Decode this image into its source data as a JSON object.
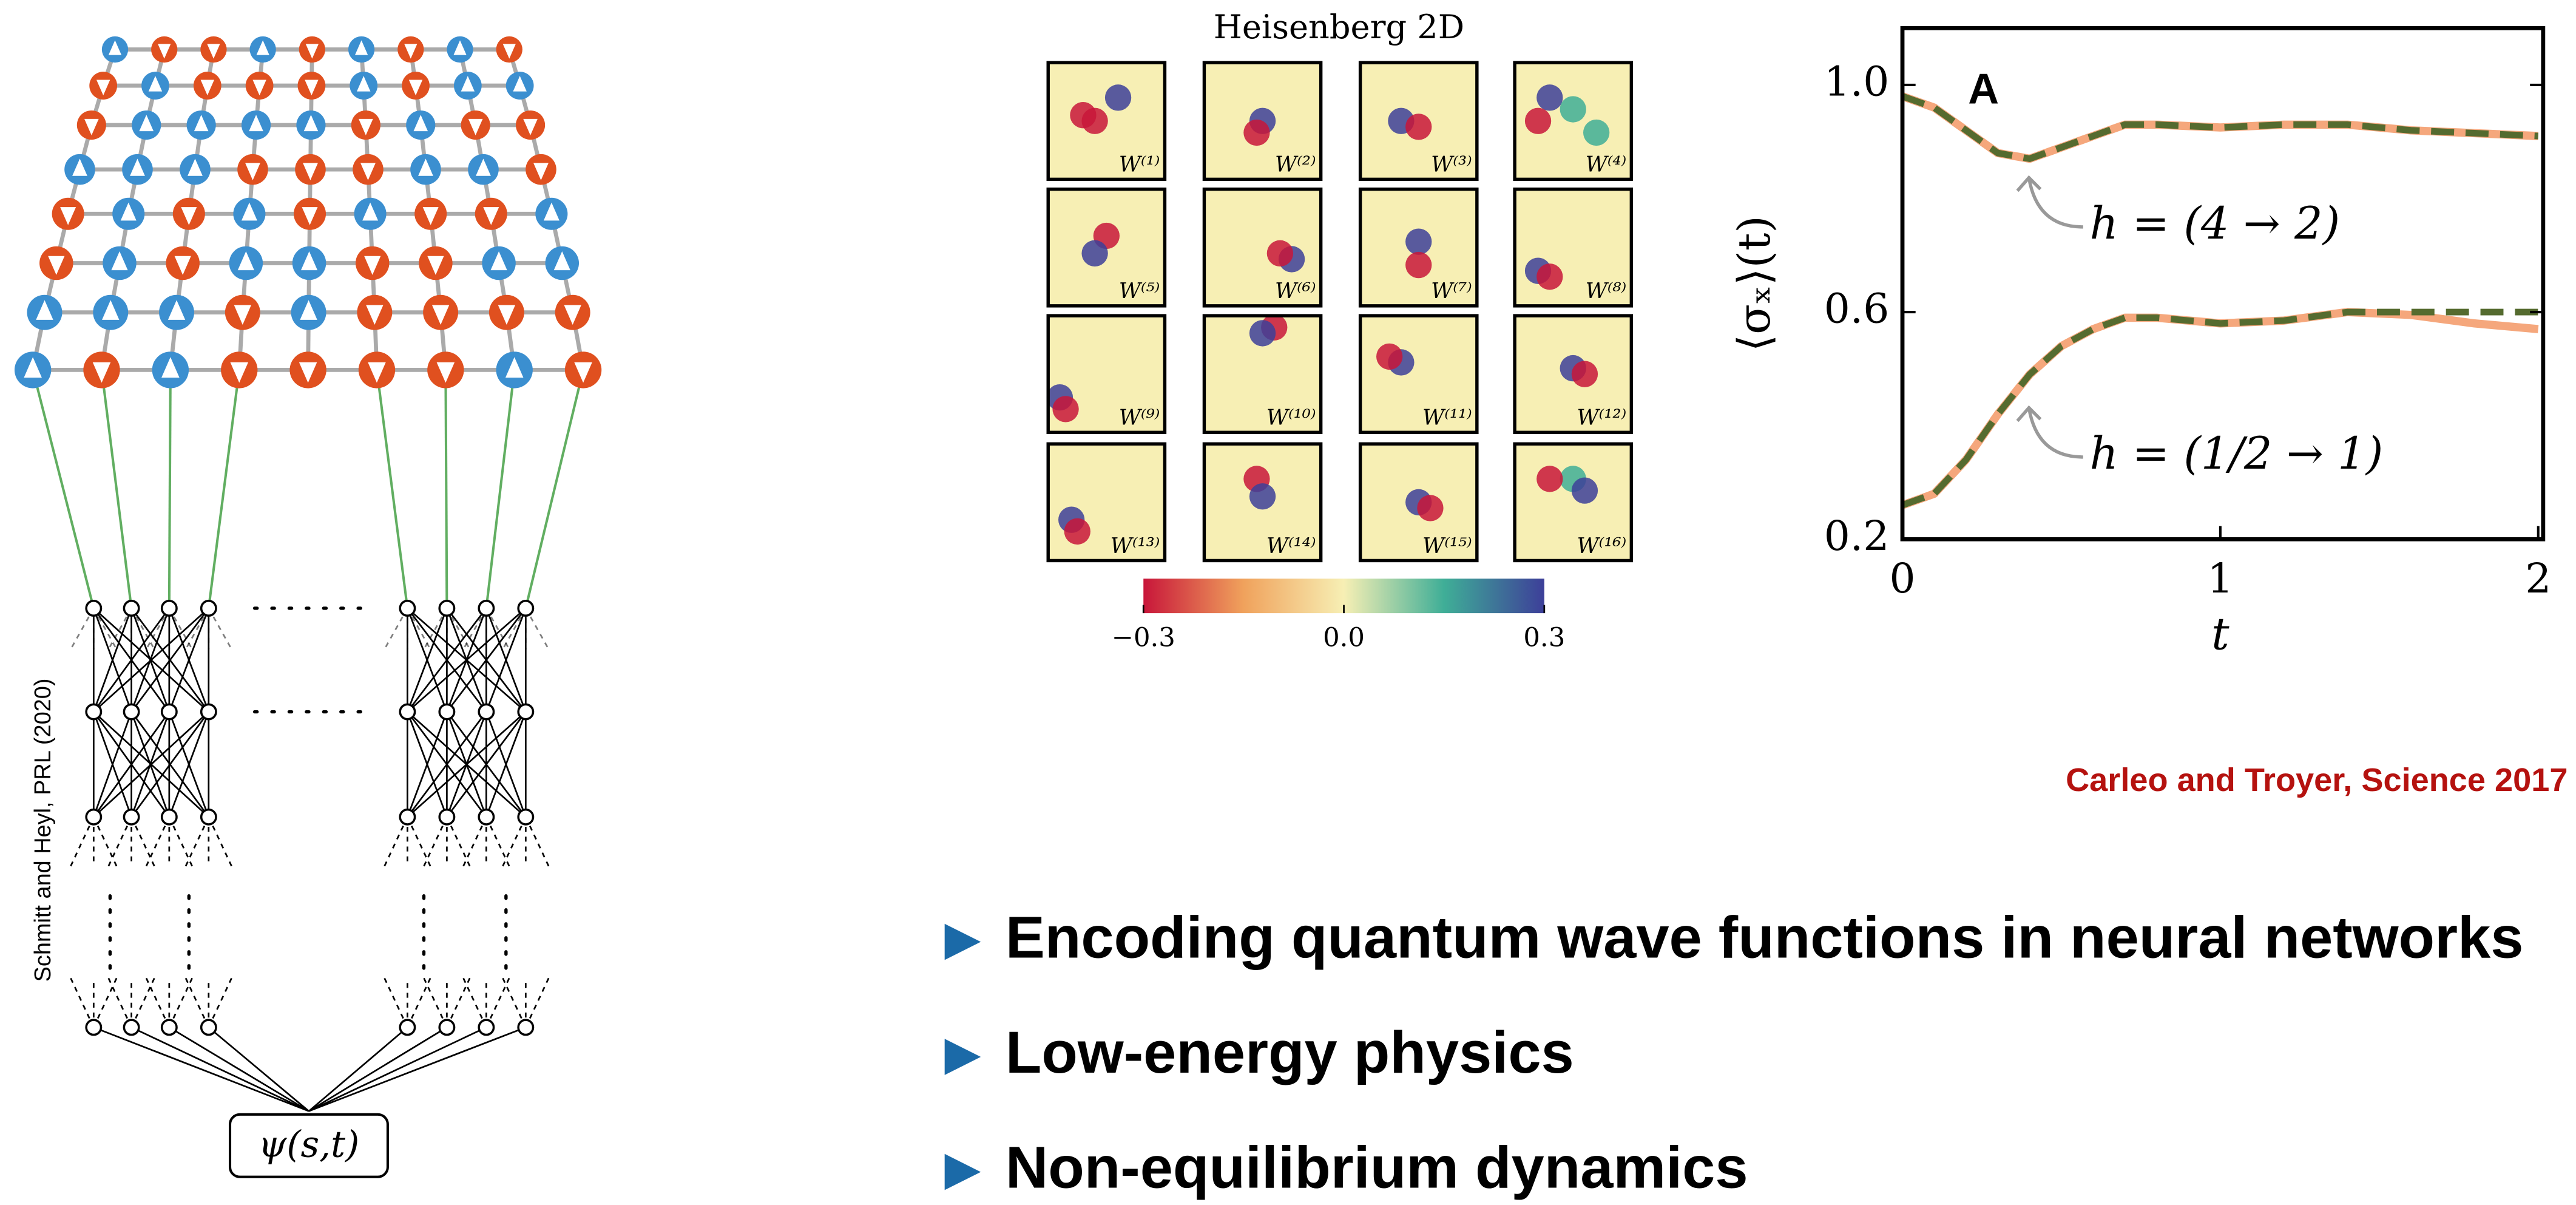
{
  "citation_left": "Schmitt and Heyl, PRL (2020)",
  "network_output": "ψ(s,t)",
  "citation_right": "Carleo and Troyer, Science 2017",
  "bullets": [
    "Encoding quantum wave functions in neural networks",
    "Low-energy physics",
    "Non-equilibrium dynamics"
  ],
  "chart_data": [
    {
      "type": "heatmap-grid",
      "title": "Heisenberg 2D",
      "tiles": [
        "W⁽¹⁾",
        "W⁽²⁾",
        "W⁽³⁾",
        "W⁽⁴⁾",
        "W⁽⁵⁾",
        "W⁽⁶⁾",
        "W⁽⁷⁾",
        "W⁽⁸⁾",
        "W⁽⁹⁾",
        "W⁽¹⁰⁾",
        "W⁽¹¹⁾",
        "W⁽¹²⁾",
        "W⁽¹³⁾",
        "W⁽¹⁴⁾",
        "W⁽¹⁵⁾",
        "W⁽¹⁶⁾"
      ],
      "colormap": [
        "#c8163a",
        "#f0a25c",
        "#f7efb4",
        "#3fae97",
        "#3d3f99"
      ],
      "clim": [
        -0.3,
        0.3
      ],
      "cticks": [
        {
          "value": -0.3,
          "label": "−0.3"
        },
        {
          "value": 0,
          "label": "0.0"
        },
        {
          "value": 0.3,
          "label": "0.3"
        }
      ]
    },
    {
      "type": "line",
      "panel_label": "A",
      "xlabel": "t",
      "ylabel": "⟨σₓ⟩(t)",
      "x": [
        0,
        0.1,
        0.2,
        0.3,
        0.4,
        0.5,
        0.6,
        0.7,
        0.8,
        1.0,
        1.2,
        1.4,
        1.6,
        1.8,
        2.0
      ],
      "xlim": [
        0,
        2
      ],
      "ylim": [
        0.2,
        1.1
      ],
      "xticks": [
        0,
        1,
        2
      ],
      "yticks": [
        {
          "value": 1,
          "label": "1.0"
        },
        {
          "value": 0.6,
          "label": "0.6"
        },
        {
          "value": 0.2,
          "label": "0.2"
        }
      ],
      "series": [
        {
          "color": "#f5a77c",
          "dashed": false,
          "values": [
            0.98,
            0.96,
            0.92,
            0.88,
            0.87,
            0.89,
            0.91,
            0.93,
            0.93,
            0.925,
            0.93,
            0.93,
            0.92,
            0.915,
            0.91
          ]
        },
        {
          "color": "#556b2f",
          "dashed": true,
          "values": [
            0.98,
            0.96,
            0.92,
            0.88,
            0.87,
            0.89,
            0.91,
            0.93,
            0.93,
            0.925,
            0.93,
            0.93,
            0.92,
            0.915,
            0.91
          ]
        },
        {
          "color": "#f5a77c",
          "dashed": false,
          "values": [
            0.26,
            0.28,
            0.34,
            0.42,
            0.49,
            0.54,
            0.57,
            0.59,
            0.59,
            0.58,
            0.585,
            0.6,
            0.595,
            0.58,
            0.57
          ]
        },
        {
          "color": "#556b2f",
          "dashed": true,
          "values": [
            0.26,
            0.28,
            0.34,
            0.42,
            0.49,
            0.54,
            0.57,
            0.59,
            0.59,
            0.58,
            0.585,
            0.6,
            0.6,
            0.6,
            0.6
          ]
        }
      ],
      "annotations": [
        "h = (4 → 2)",
        "h = (1/2 → 1)"
      ]
    }
  ]
}
